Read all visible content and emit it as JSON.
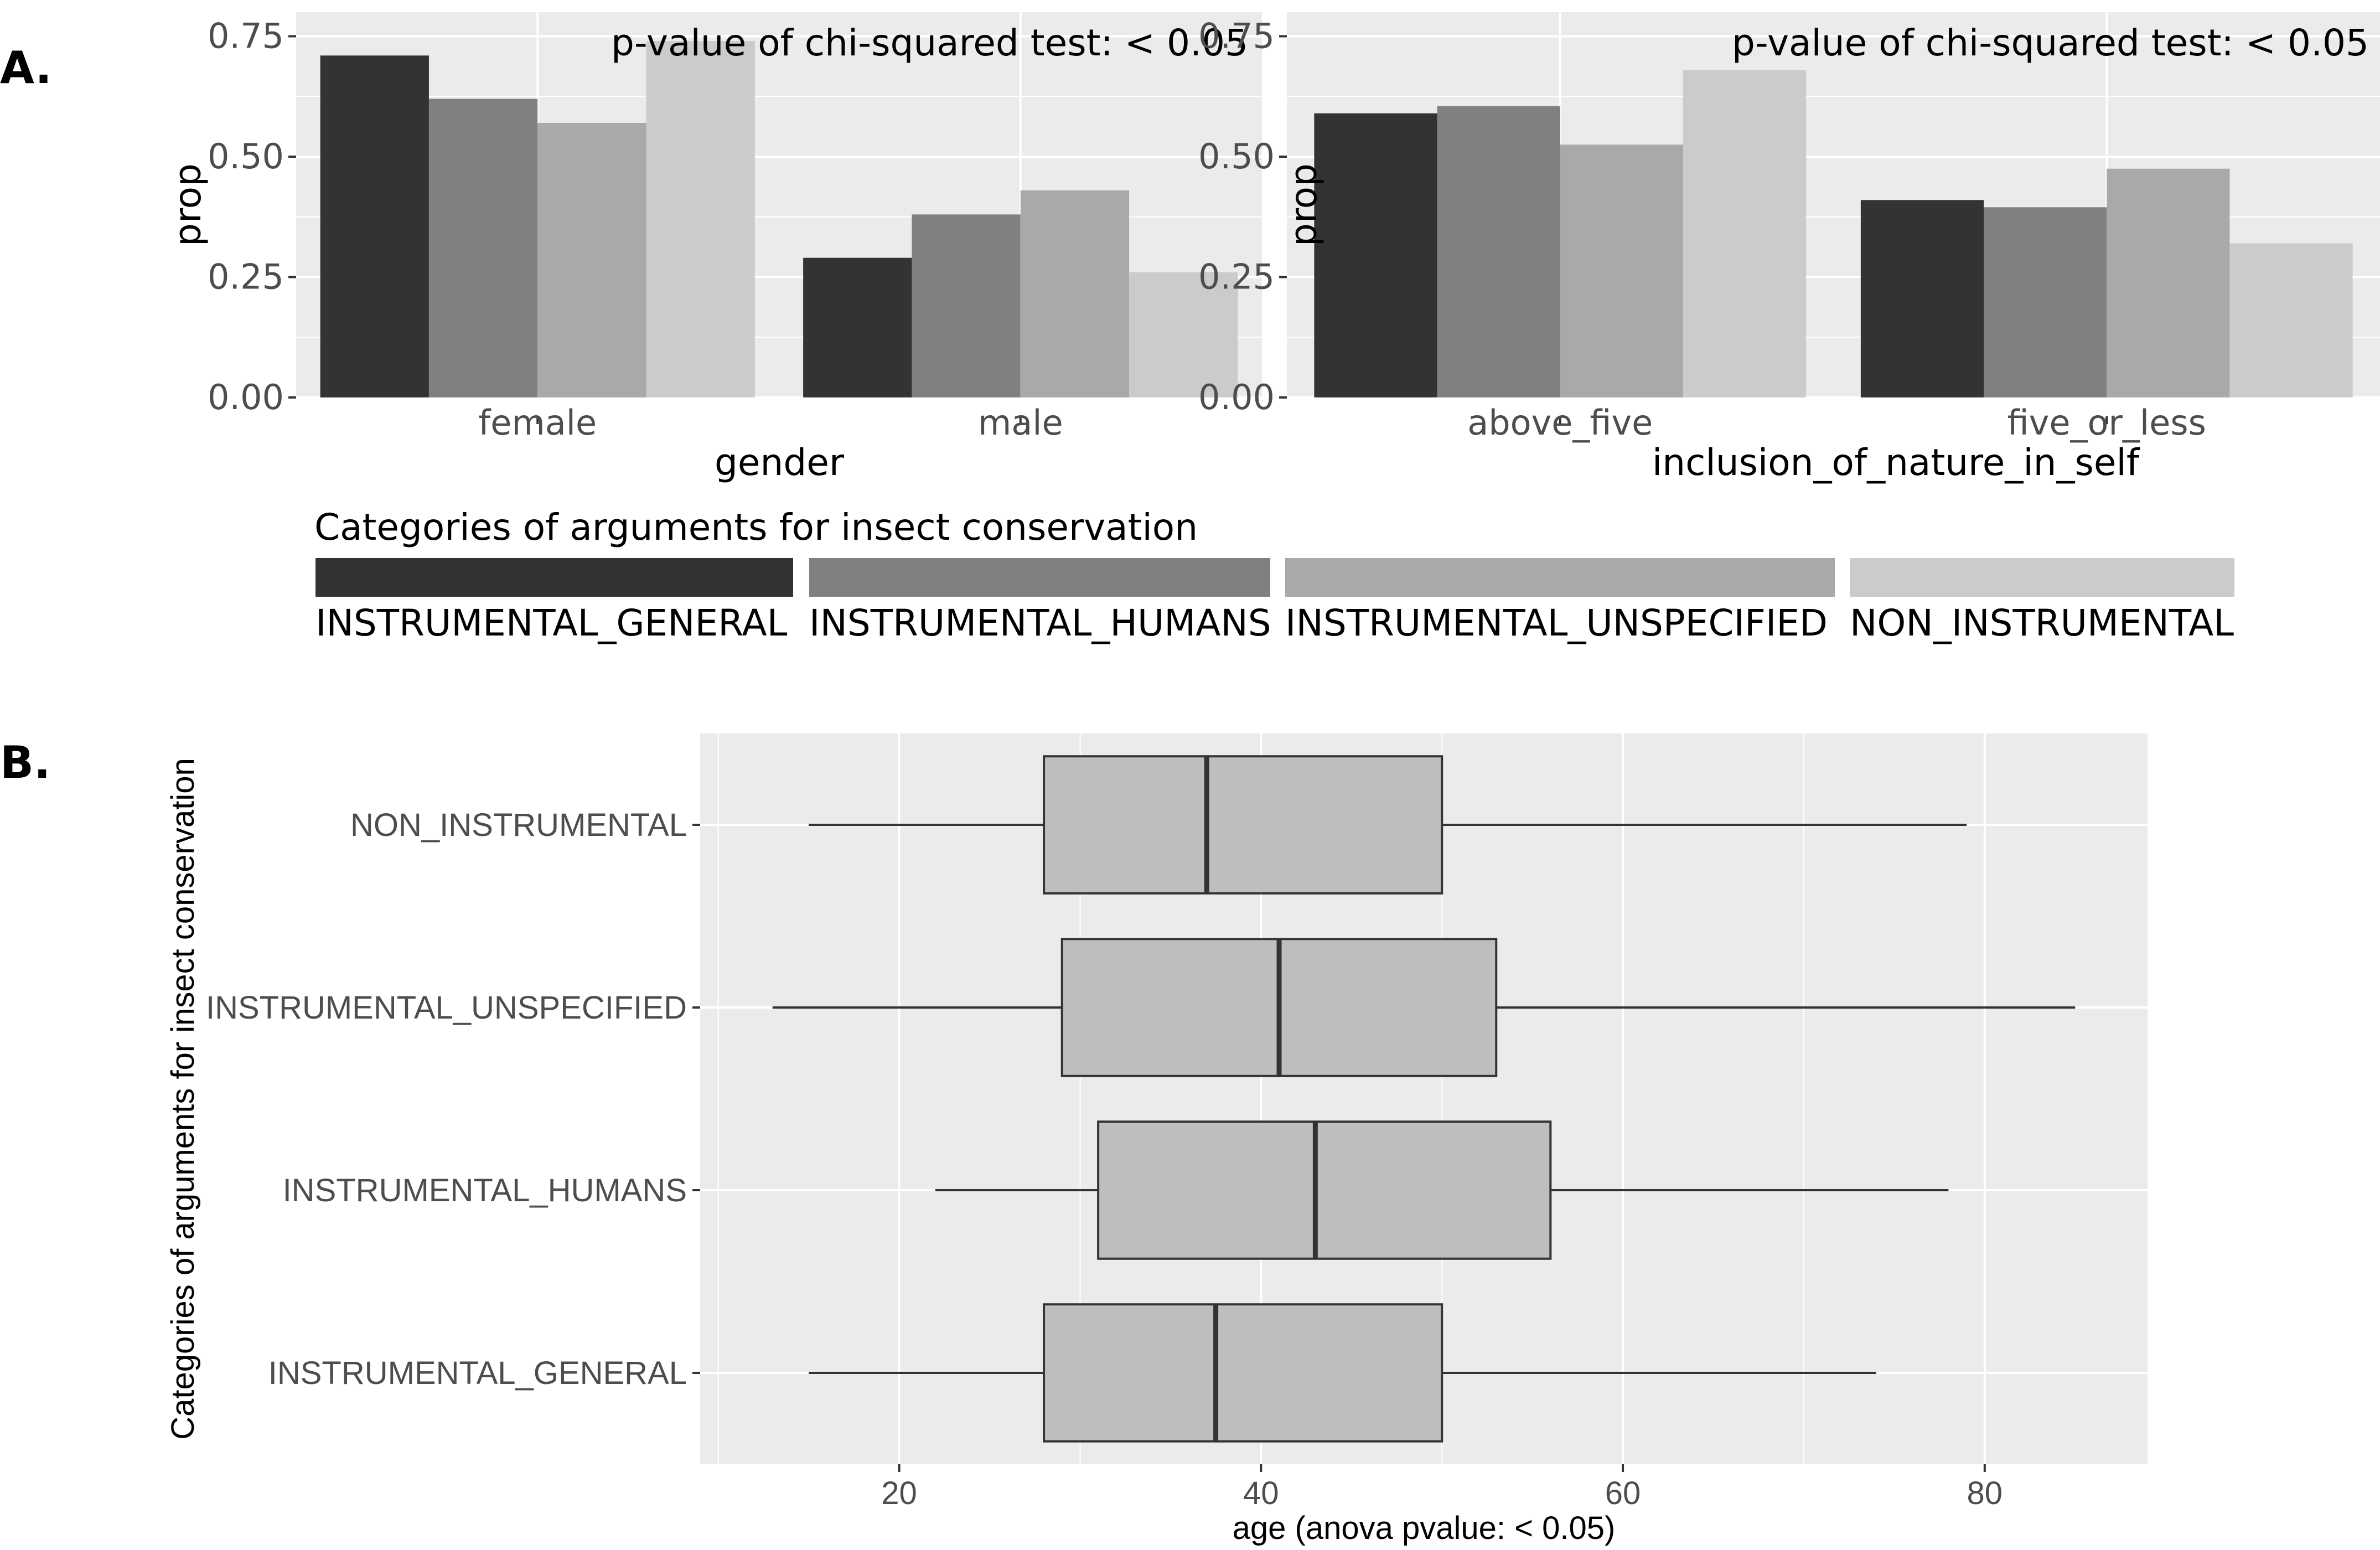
{
  "panel_labels": {
    "a": "A.",
    "b": "B."
  },
  "palette": [
    "#333333",
    "#808080",
    "#a9a9a9",
    "#cbcbcb"
  ],
  "legend": {
    "title": "Categories of arguments for insect conservation",
    "items": [
      "INSTRUMENTAL_GENERAL",
      "INSTRUMENTAL_HUMANS",
      "INSTRUMENTAL_UNSPECIFIED",
      "NON_INSTRUMENTAL"
    ]
  },
  "chart_data": [
    {
      "type": "bar",
      "annotation": "p-value of chi-squared test: < 0.05",
      "xlabel": "gender",
      "ylabel": "prop",
      "categories": [
        "female",
        "male"
      ],
      "series": [
        {
          "name": "INSTRUMENTAL_GENERAL",
          "values": [
            0.71,
            0.29
          ]
        },
        {
          "name": "INSTRUMENTAL_HUMANS",
          "values": [
            0.62,
            0.38
          ]
        },
        {
          "name": "INSTRUMENTAL_UNSPECIFIED",
          "values": [
            0.57,
            0.43
          ]
        },
        {
          "name": "NON_INSTRUMENTAL",
          "values": [
            0.74,
            0.26
          ]
        }
      ],
      "ylim": [
        0,
        0.8
      ],
      "yticks": [
        0,
        0.25,
        0.5,
        0.75
      ],
      "ytick_labels": [
        "0.00",
        "0.25",
        "0.50",
        "0.75"
      ],
      "grid": true
    },
    {
      "type": "bar",
      "annotation": "p-value of chi-squared test: < 0.05",
      "xlabel": "inclusion_of_nature_in_self",
      "ylabel": "prop",
      "categories": [
        "above_five",
        "five_or_less"
      ],
      "series": [
        {
          "name": "INSTRUMENTAL_GENERAL",
          "values": [
            0.59,
            0.41
          ]
        },
        {
          "name": "INSTRUMENTAL_HUMANS",
          "values": [
            0.605,
            0.395
          ]
        },
        {
          "name": "INSTRUMENTAL_UNSPECIFIED",
          "values": [
            0.525,
            0.475
          ]
        },
        {
          "name": "NON_INSTRUMENTAL",
          "values": [
            0.68,
            0.32
          ]
        }
      ],
      "ylim": [
        0,
        0.8
      ],
      "yticks": [
        0,
        0.25,
        0.5,
        0.75
      ],
      "ytick_labels": [
        "0.00",
        "0.25",
        "0.50",
        "0.75"
      ],
      "grid": true
    },
    {
      "type": "box",
      "xlabel": "age (anova pvalue: < 0.05)",
      "ylabel": "Categories of arguments for insect conservation",
      "categories": [
        "INSTRUMENTAL_GENERAL",
        "INSTRUMENTAL_HUMANS",
        "INSTRUMENTAL_UNSPECIFIED",
        "NON_INSTRUMENTAL"
      ],
      "boxes": [
        {
          "category": "INSTRUMENTAL_GENERAL",
          "min": 15,
          "q1": 28,
          "median": 37.5,
          "q3": 50,
          "max": 74
        },
        {
          "category": "INSTRUMENTAL_HUMANS",
          "min": 22,
          "q1": 31,
          "median": 43,
          "q3": 56,
          "max": 78
        },
        {
          "category": "INSTRUMENTAL_UNSPECIFIED",
          "min": 13,
          "q1": 29,
          "median": 41,
          "q3": 53,
          "max": 85
        },
        {
          "category": "NON_INSTRUMENTAL",
          "min": 15,
          "q1": 28,
          "median": 37,
          "q3": 50,
          "max": 79
        }
      ],
      "xlim": [
        9,
        89
      ],
      "xticks": [
        20,
        40,
        60,
        80
      ],
      "xtick_labels": [
        "20",
        "40",
        "60",
        "80"
      ],
      "box_fill": "#bebebe",
      "grid": true
    }
  ]
}
